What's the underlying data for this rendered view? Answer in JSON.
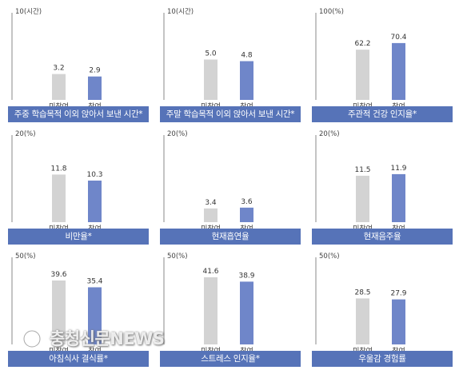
{
  "chart_data": [
    {
      "type": "bar",
      "title": "주중 학습목적 이외 앉아서 보낸 시간*",
      "unit_label": "10(시간)",
      "ymax": 10,
      "categories": [
        "미참여",
        "참여"
      ],
      "values": [
        3.2,
        2.9
      ],
      "value_labels": [
        "3.2",
        "2.9"
      ]
    },
    {
      "type": "bar",
      "title": "주말 학습목적 이외 앉아서 보낸 시간*",
      "unit_label": "10(시간)",
      "ymax": 10,
      "categories": [
        "미참여",
        "참여"
      ],
      "values": [
        5.0,
        4.8
      ],
      "value_labels": [
        "5.0",
        "4.8"
      ]
    },
    {
      "type": "bar",
      "title": "주관적 건강 인지율*",
      "unit_label": "100(%)",
      "ymax": 100,
      "categories": [
        "미참여",
        "참여"
      ],
      "values": [
        62.2,
        70.4
      ],
      "value_labels": [
        "62.2",
        "70.4"
      ]
    },
    {
      "type": "bar",
      "title": "비만율*",
      "unit_label": "20(%)",
      "ymax": 20,
      "categories": [
        "미참여",
        "참여"
      ],
      "values": [
        11.8,
        10.3
      ],
      "value_labels": [
        "11.8",
        "10.3"
      ]
    },
    {
      "type": "bar",
      "title": "현재흡연율",
      "unit_label": "20(%)",
      "ymax": 20,
      "categories": [
        "미참여",
        "참여"
      ],
      "values": [
        3.4,
        3.6
      ],
      "value_labels": [
        "3.4",
        "3.6"
      ]
    },
    {
      "type": "bar",
      "title": "현재음주율",
      "unit_label": "20(%)",
      "ymax": 20,
      "categories": [
        "미참여",
        "참여"
      ],
      "values": [
        11.5,
        11.9
      ],
      "value_labels": [
        "11.5",
        "11.9"
      ]
    },
    {
      "type": "bar",
      "title": "아침식사 결식률*",
      "unit_label": "50(%)",
      "ymax": 50,
      "categories": [
        "미참여",
        "참여"
      ],
      "values": [
        39.6,
        35.4
      ],
      "value_labels": [
        "39.6",
        "35.4"
      ]
    },
    {
      "type": "bar",
      "title": "스트레스 인지율*",
      "unit_label": "50(%)",
      "ymax": 50,
      "categories": [
        "미참여",
        "참여"
      ],
      "values": [
        41.6,
        38.9
      ],
      "value_labels": [
        "41.6",
        "38.9"
      ]
    },
    {
      "type": "bar",
      "title": "우울감 경험률",
      "unit_label": "50(%)",
      "ymax": 50,
      "categories": [
        "미참여",
        "참여"
      ],
      "values": [
        28.5,
        27.9
      ],
      "value_labels": [
        "28.5",
        "27.9"
      ]
    }
  ],
  "colors": {
    "non_participant": "#d3d3d3",
    "participant": "#6f86c9",
    "caption_bg": "#5673b8",
    "axis": "#888888"
  },
  "watermark": {
    "text": "충청신문NEWS"
  }
}
